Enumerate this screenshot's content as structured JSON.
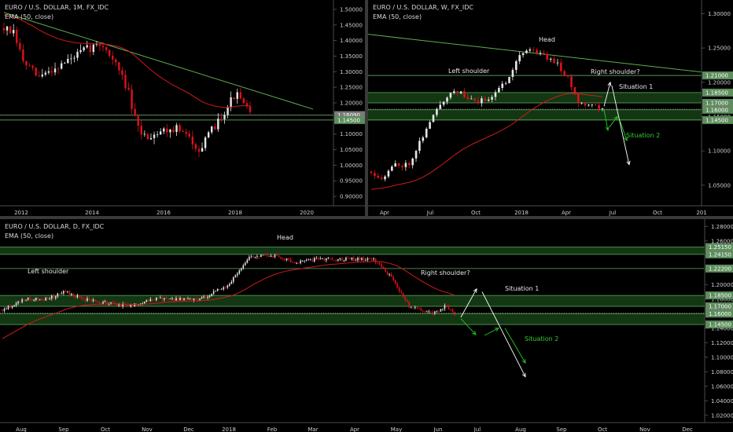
{
  "colors": {
    "background": "#000000",
    "up_candle": "#e6e6e6",
    "down_candle": "#e0111a",
    "ema": "#d0191c",
    "trendline": "#5fae4f",
    "zone_fill": "#1a4a1a",
    "zone_line": "#6cc06c",
    "badge_green": "#5e8d5e",
    "badge_grey": "#7a7a7a",
    "arrow_white": "#ffffff",
    "arrow_green": "#22cc22"
  },
  "chart_data": [
    {
      "id": "monthly",
      "type": "candlestick",
      "title": "EURO / U.S. DOLLAR, 1M, FX_IDC",
      "subtitle": "EMA (50, close)",
      "x_ticks": [
        "2012",
        "2014",
        "2016",
        "2018",
        "2020"
      ],
      "y_ticks": [
        "1.50000",
        "1.45000",
        "1.40000",
        "1.35000",
        "1.30000",
        "1.25000",
        "1.20000",
        "1.15000",
        "1.10000",
        "1.05000",
        "1.00000",
        "0.95000",
        "0.90000"
      ],
      "ylim": [
        0.87,
        1.53
      ],
      "badges": [
        {
          "label": "1.16090",
          "value": 1.1609,
          "style": "grey"
        },
        {
          "label": "1.14500",
          "value": 1.145,
          "style": "green"
        }
      ],
      "horizontal_lines": [
        1.1609,
        1.145
      ],
      "annotations": []
    },
    {
      "id": "weekly",
      "type": "candlestick",
      "title": "EURO / U.S. DOLLAR, W, FX_IDC",
      "subtitle": "EMA (50, close)",
      "x_ticks": [
        "Apr",
        "Jul",
        "Oct",
        "2018",
        "Apr",
        "Jul",
        "Oct",
        "201"
      ],
      "y_ticks": [
        "1.30000",
        "1.25000",
        "1.20000",
        "1.15000",
        "1.10000",
        "1.05000"
      ],
      "ylim": [
        1.02,
        1.32
      ],
      "badges": [
        {
          "label": "1.21000",
          "value": 1.21,
          "style": "green"
        },
        {
          "label": "1.18500",
          "value": 1.185,
          "style": "green"
        },
        {
          "label": "1.17000",
          "value": 1.17,
          "style": "green"
        },
        {
          "label": "1.16090",
          "value": 1.1609,
          "style": "grey"
        },
        {
          "label": "1.16000",
          "value": 1.16,
          "style": "green"
        },
        {
          "label": "1.14500",
          "value": 1.145,
          "style": "green"
        }
      ],
      "horizontal_lines": [
        1.21,
        1.185,
        1.17,
        1.16,
        1.145
      ],
      "annotations": [
        "Left shoulder",
        "Head",
        "Right shoulder?",
        "Situation 1",
        "Situation 2"
      ]
    },
    {
      "id": "daily",
      "type": "candlestick",
      "title": "EURO / U.S. DOLLAR, D, FX_IDC",
      "subtitle": "EMA (50, close)",
      "x_ticks": [
        "Aug",
        "Sep",
        "Oct",
        "Nov",
        "Dec",
        "2018",
        "Feb",
        "Mar",
        "Apr",
        "May",
        "Jun",
        "Jul",
        "Aug",
        "Sep",
        "Oct",
        "Nov",
        "Dec"
      ],
      "y_ticks": [
        "1.28000",
        "1.26000",
        "1.24000",
        "1.22000",
        "1.20000",
        "1.18000",
        "1.16000",
        "1.14000",
        "1.12000",
        "1.10000",
        "1.08000",
        "1.06000",
        "1.04000",
        "1.02000"
      ],
      "ylim": [
        1.01,
        1.29
      ],
      "badges": [
        {
          "label": "1.25150",
          "value": 1.2515,
          "style": "green"
        },
        {
          "label": "1.24150",
          "value": 1.2415,
          "style": "green"
        },
        {
          "label": "1.22200",
          "value": 1.222,
          "style": "green"
        },
        {
          "label": "1.18500",
          "value": 1.185,
          "style": "green"
        },
        {
          "label": "1.17000",
          "value": 1.17,
          "style": "green"
        },
        {
          "label": "1.16090",
          "value": 1.1609,
          "style": "grey"
        },
        {
          "label": "1.16000",
          "value": 1.16,
          "style": "green"
        },
        {
          "label": "1.14500",
          "value": 1.145,
          "style": "green"
        }
      ],
      "horizontal_lines": [
        1.2515,
        1.2415,
        1.222,
        1.185,
        1.17,
        1.16,
        1.145
      ],
      "annotations": [
        "Left shoulder",
        "Head",
        "Right shoulder?",
        "Situation 1",
        "Situation 2"
      ]
    }
  ]
}
